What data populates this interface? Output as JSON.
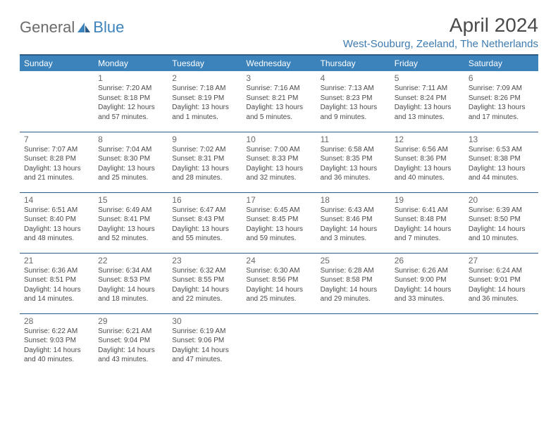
{
  "brand": {
    "part1": "General",
    "part2": "Blue"
  },
  "title": "April 2024",
  "location": "West-Souburg, Zeeland, The Netherlands",
  "colors": {
    "header_bg": "#3d83bb",
    "header_border": "#2a5a85",
    "text": "#4a4a4a",
    "location": "#3d7bb0"
  },
  "weekdays": [
    "Sunday",
    "Monday",
    "Tuesday",
    "Wednesday",
    "Thursday",
    "Friday",
    "Saturday"
  ],
  "weeks": [
    [
      null,
      {
        "n": "1",
        "sr": "Sunrise: 7:20 AM",
        "ss": "Sunset: 8:18 PM",
        "d1": "Daylight: 12 hours",
        "d2": "and 57 minutes."
      },
      {
        "n": "2",
        "sr": "Sunrise: 7:18 AM",
        "ss": "Sunset: 8:19 PM",
        "d1": "Daylight: 13 hours",
        "d2": "and 1 minutes."
      },
      {
        "n": "3",
        "sr": "Sunrise: 7:16 AM",
        "ss": "Sunset: 8:21 PM",
        "d1": "Daylight: 13 hours",
        "d2": "and 5 minutes."
      },
      {
        "n": "4",
        "sr": "Sunrise: 7:13 AM",
        "ss": "Sunset: 8:23 PM",
        "d1": "Daylight: 13 hours",
        "d2": "and 9 minutes."
      },
      {
        "n": "5",
        "sr": "Sunrise: 7:11 AM",
        "ss": "Sunset: 8:24 PM",
        "d1": "Daylight: 13 hours",
        "d2": "and 13 minutes."
      },
      {
        "n": "6",
        "sr": "Sunrise: 7:09 AM",
        "ss": "Sunset: 8:26 PM",
        "d1": "Daylight: 13 hours",
        "d2": "and 17 minutes."
      }
    ],
    [
      {
        "n": "7",
        "sr": "Sunrise: 7:07 AM",
        "ss": "Sunset: 8:28 PM",
        "d1": "Daylight: 13 hours",
        "d2": "and 21 minutes."
      },
      {
        "n": "8",
        "sr": "Sunrise: 7:04 AM",
        "ss": "Sunset: 8:30 PM",
        "d1": "Daylight: 13 hours",
        "d2": "and 25 minutes."
      },
      {
        "n": "9",
        "sr": "Sunrise: 7:02 AM",
        "ss": "Sunset: 8:31 PM",
        "d1": "Daylight: 13 hours",
        "d2": "and 28 minutes."
      },
      {
        "n": "10",
        "sr": "Sunrise: 7:00 AM",
        "ss": "Sunset: 8:33 PM",
        "d1": "Daylight: 13 hours",
        "d2": "and 32 minutes."
      },
      {
        "n": "11",
        "sr": "Sunrise: 6:58 AM",
        "ss": "Sunset: 8:35 PM",
        "d1": "Daylight: 13 hours",
        "d2": "and 36 minutes."
      },
      {
        "n": "12",
        "sr": "Sunrise: 6:56 AM",
        "ss": "Sunset: 8:36 PM",
        "d1": "Daylight: 13 hours",
        "d2": "and 40 minutes."
      },
      {
        "n": "13",
        "sr": "Sunrise: 6:53 AM",
        "ss": "Sunset: 8:38 PM",
        "d1": "Daylight: 13 hours",
        "d2": "and 44 minutes."
      }
    ],
    [
      {
        "n": "14",
        "sr": "Sunrise: 6:51 AM",
        "ss": "Sunset: 8:40 PM",
        "d1": "Daylight: 13 hours",
        "d2": "and 48 minutes."
      },
      {
        "n": "15",
        "sr": "Sunrise: 6:49 AM",
        "ss": "Sunset: 8:41 PM",
        "d1": "Daylight: 13 hours",
        "d2": "and 52 minutes."
      },
      {
        "n": "16",
        "sr": "Sunrise: 6:47 AM",
        "ss": "Sunset: 8:43 PM",
        "d1": "Daylight: 13 hours",
        "d2": "and 55 minutes."
      },
      {
        "n": "17",
        "sr": "Sunrise: 6:45 AM",
        "ss": "Sunset: 8:45 PM",
        "d1": "Daylight: 13 hours",
        "d2": "and 59 minutes."
      },
      {
        "n": "18",
        "sr": "Sunrise: 6:43 AM",
        "ss": "Sunset: 8:46 PM",
        "d1": "Daylight: 14 hours",
        "d2": "and 3 minutes."
      },
      {
        "n": "19",
        "sr": "Sunrise: 6:41 AM",
        "ss": "Sunset: 8:48 PM",
        "d1": "Daylight: 14 hours",
        "d2": "and 7 minutes."
      },
      {
        "n": "20",
        "sr": "Sunrise: 6:39 AM",
        "ss": "Sunset: 8:50 PM",
        "d1": "Daylight: 14 hours",
        "d2": "and 10 minutes."
      }
    ],
    [
      {
        "n": "21",
        "sr": "Sunrise: 6:36 AM",
        "ss": "Sunset: 8:51 PM",
        "d1": "Daylight: 14 hours",
        "d2": "and 14 minutes."
      },
      {
        "n": "22",
        "sr": "Sunrise: 6:34 AM",
        "ss": "Sunset: 8:53 PM",
        "d1": "Daylight: 14 hours",
        "d2": "and 18 minutes."
      },
      {
        "n": "23",
        "sr": "Sunrise: 6:32 AM",
        "ss": "Sunset: 8:55 PM",
        "d1": "Daylight: 14 hours",
        "d2": "and 22 minutes."
      },
      {
        "n": "24",
        "sr": "Sunrise: 6:30 AM",
        "ss": "Sunset: 8:56 PM",
        "d1": "Daylight: 14 hours",
        "d2": "and 25 minutes."
      },
      {
        "n": "25",
        "sr": "Sunrise: 6:28 AM",
        "ss": "Sunset: 8:58 PM",
        "d1": "Daylight: 14 hours",
        "d2": "and 29 minutes."
      },
      {
        "n": "26",
        "sr": "Sunrise: 6:26 AM",
        "ss": "Sunset: 9:00 PM",
        "d1": "Daylight: 14 hours",
        "d2": "and 33 minutes."
      },
      {
        "n": "27",
        "sr": "Sunrise: 6:24 AM",
        "ss": "Sunset: 9:01 PM",
        "d1": "Daylight: 14 hours",
        "d2": "and 36 minutes."
      }
    ],
    [
      {
        "n": "28",
        "sr": "Sunrise: 6:22 AM",
        "ss": "Sunset: 9:03 PM",
        "d1": "Daylight: 14 hours",
        "d2": "and 40 minutes."
      },
      {
        "n": "29",
        "sr": "Sunrise: 6:21 AM",
        "ss": "Sunset: 9:04 PM",
        "d1": "Daylight: 14 hours",
        "d2": "and 43 minutes."
      },
      {
        "n": "30",
        "sr": "Sunrise: 6:19 AM",
        "ss": "Sunset: 9:06 PM",
        "d1": "Daylight: 14 hours",
        "d2": "and 47 minutes."
      },
      null,
      null,
      null,
      null
    ]
  ]
}
